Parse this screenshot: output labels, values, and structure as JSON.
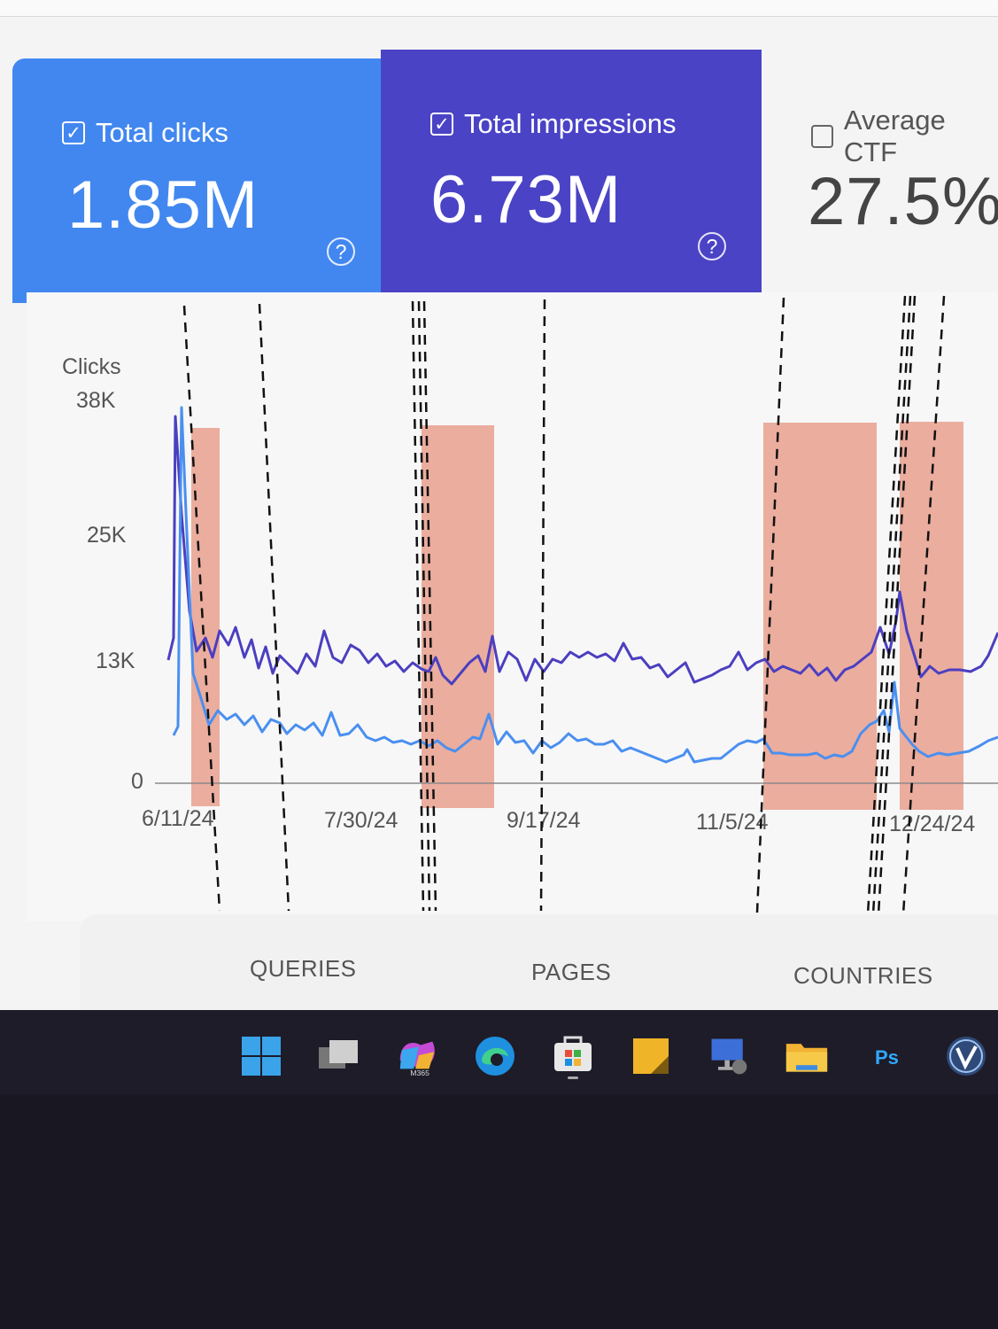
{
  "metrics": {
    "total_clicks": {
      "label": "Total clicks",
      "value": "1.85M",
      "checked": true
    },
    "total_impressions": {
      "label": "Total impressions",
      "value": "6.73M",
      "checked": true
    },
    "average_ctr": {
      "label": "Average CTF",
      "value": "27.5%",
      "checked": false
    },
    "check_mark": "✓",
    "help_icon": "?"
  },
  "chart_data": {
    "type": "line",
    "ylabel": "Clicks",
    "y_ticks": [
      "38K",
      "25K",
      "13K",
      "0"
    ],
    "x_ticks": [
      "6/11/24",
      "7/30/24",
      "9/17/24",
      "11/5/24",
      "12/24/24"
    ],
    "ylim": [
      0,
      38000
    ],
    "colors": {
      "clicks": "#4a8ff0",
      "impressions": "#4b3fc0",
      "highlight": "#e9a08e"
    }
  },
  "tabs": [
    "QUERIES",
    "PAGES",
    "COUNTRIES"
  ],
  "taskbar": {
    "icons": [
      "windows-start-icon",
      "task-view-icon",
      "m365-copilot-icon",
      "edge-icon",
      "store-icon",
      "sticky-notes-icon",
      "remote-desktop-icon",
      "file-explorer-icon",
      "photoshop-icon",
      "v-app-icon"
    ],
    "m365_label": "M365",
    "ps_label": "Ps"
  }
}
